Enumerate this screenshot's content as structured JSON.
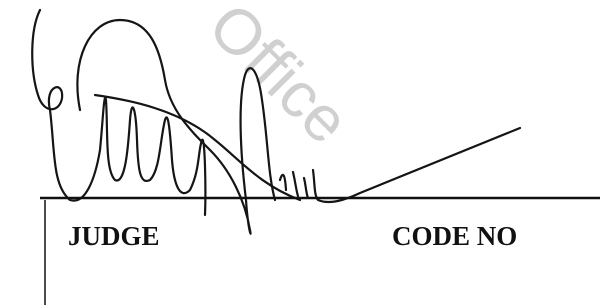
{
  "watermark": "Office",
  "labels": {
    "judge": "JUDGE",
    "code_no": "CODE NO"
  }
}
